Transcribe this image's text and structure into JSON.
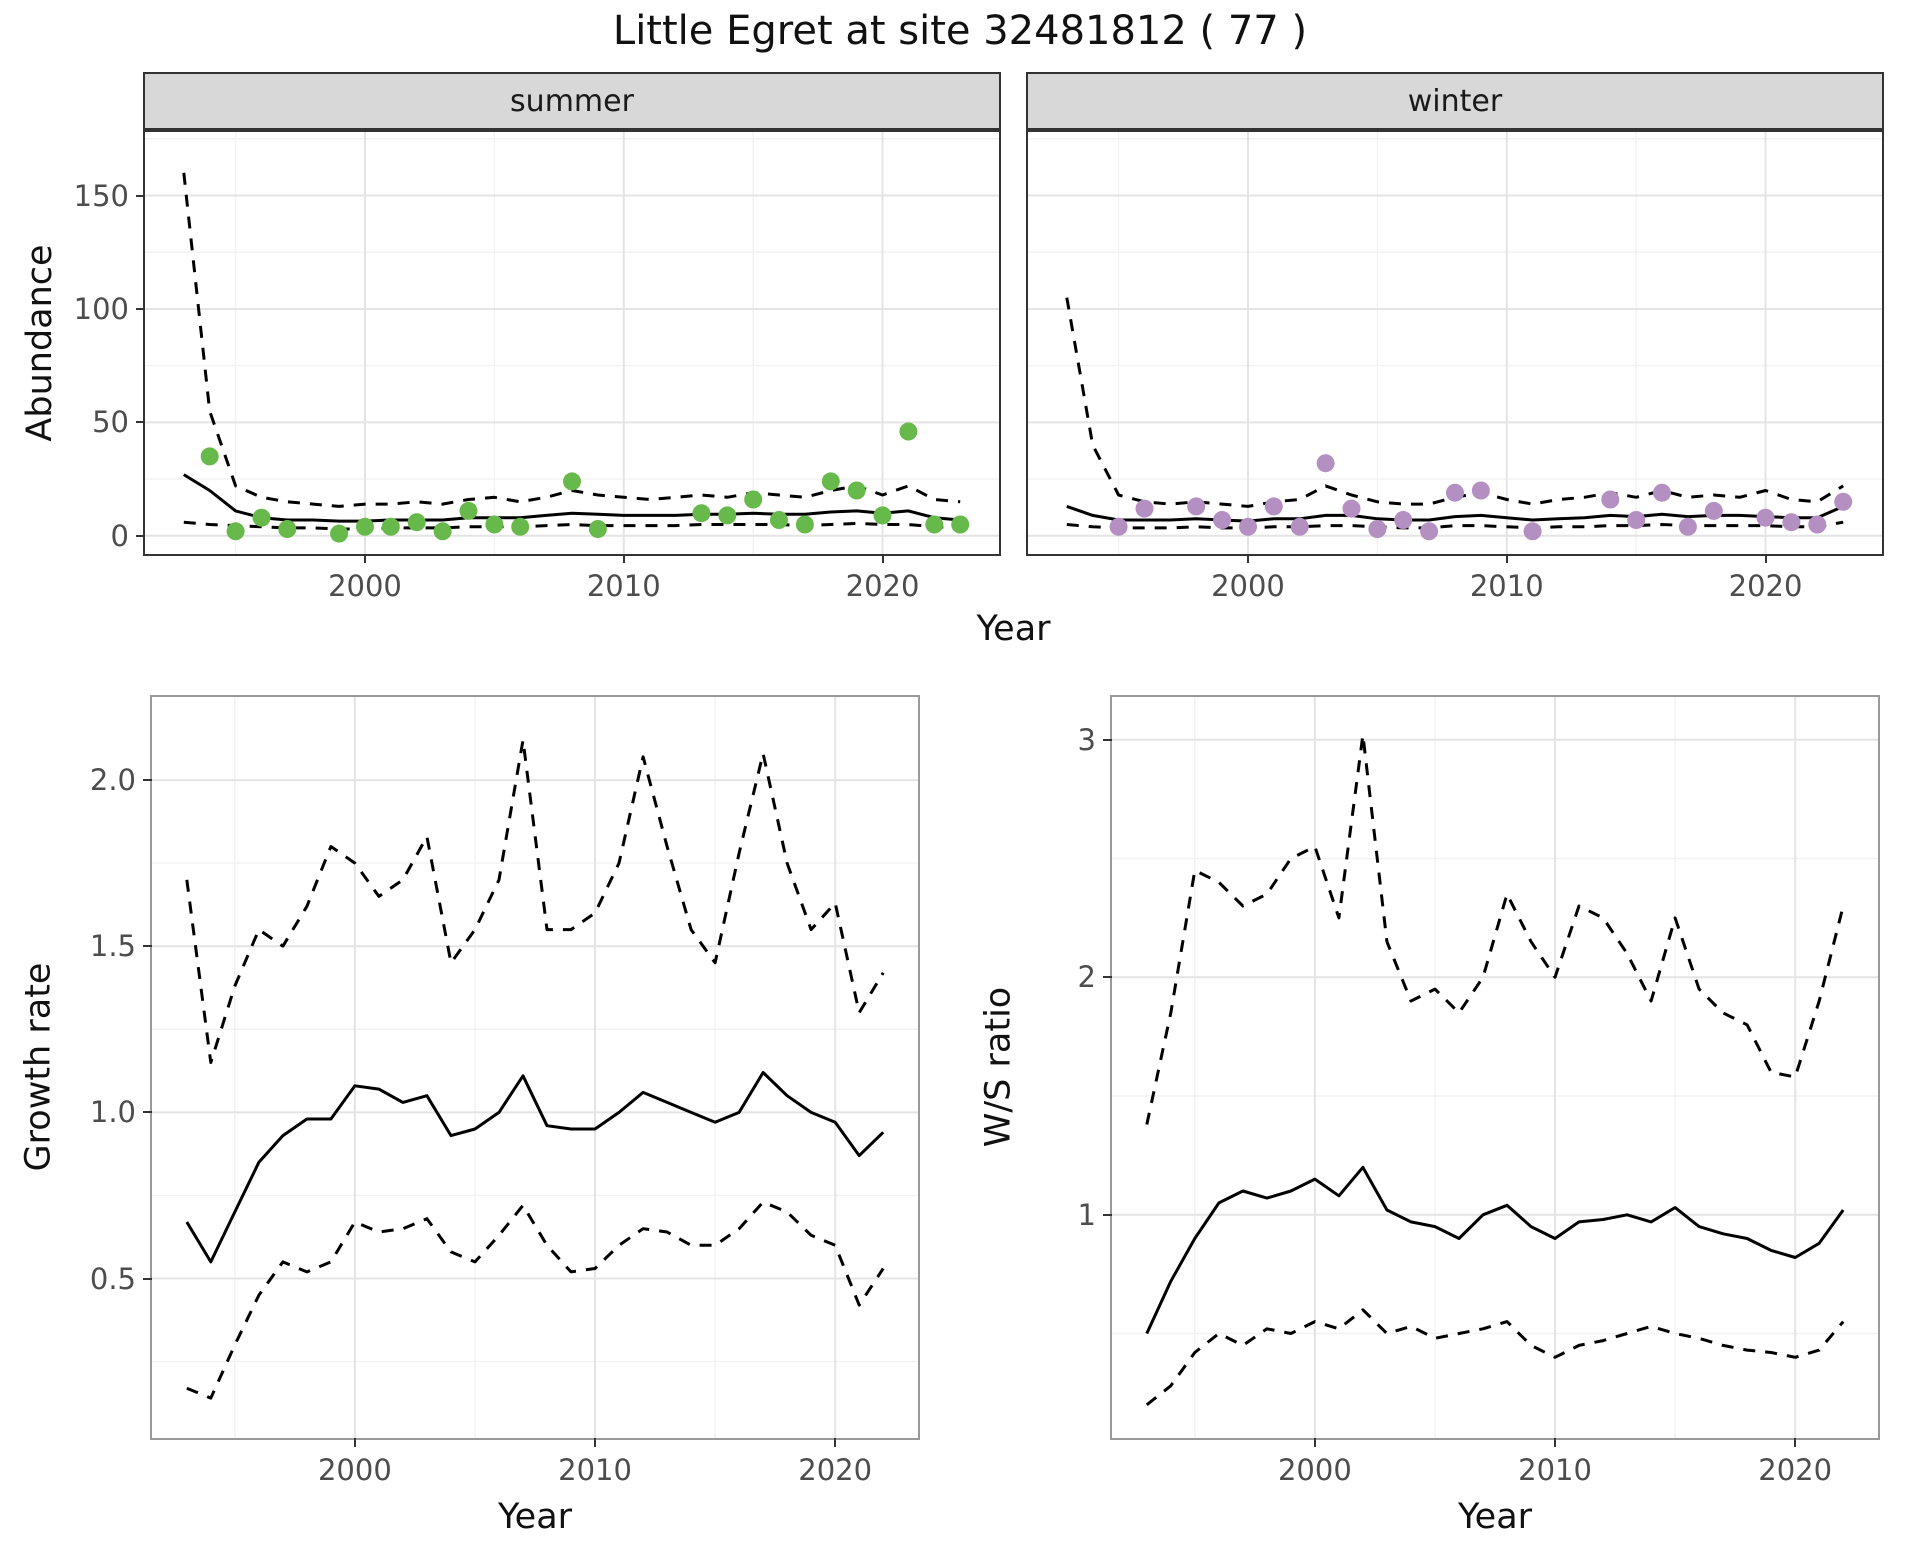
{
  "title": "Little Egret at site 32481812 ( 77 )",
  "style": {
    "line_color": "#000000",
    "grid_major": "#e4e4e4",
    "grid_minor": "#f2f2f2",
    "strip_bg": "#d8d8d8",
    "panel_border_dark": "#333333",
    "panel_border_light": "#999999",
    "tick_color": "#4d4d4d",
    "summer_green": "#68b94c",
    "winter_purple": "#b48fc2"
  },
  "chart_data": [
    {
      "id": "abundance-summer",
      "type": "line+scatter",
      "facet_label": "summer",
      "xlabel": "Year",
      "ylabel": "Abundance",
      "legend": "none",
      "grid": true,
      "xlim": [
        1991.5,
        2024.5
      ],
      "ylim": [
        -8,
        178
      ],
      "xticks": [
        2000,
        2010,
        2020
      ],
      "xtick_labels": [
        "2000",
        "2010",
        "2020"
      ],
      "xticks_minor": [
        1995,
        2005,
        2015
      ],
      "yticks": [
        0,
        50,
        100,
        150
      ],
      "ytick_labels": [
        "0",
        "50",
        "100",
        "150"
      ],
      "yticks_minor": [
        25,
        75,
        125,
        175
      ],
      "point_color": "#68b94c",
      "years": [
        1993,
        1994,
        1995,
        1996,
        1997,
        1998,
        1999,
        2000,
        2001,
        2002,
        2003,
        2004,
        2005,
        2006,
        2007,
        2008,
        2009,
        2010,
        2011,
        2012,
        2013,
        2014,
        2015,
        2016,
        2017,
        2018,
        2019,
        2020,
        2021,
        2022,
        2023
      ],
      "series": [
        {
          "name": "upper-ci",
          "dashed": true,
          "values": [
            160,
            55,
            22,
            17,
            15,
            14,
            13,
            14,
            14,
            15,
            14,
            16,
            17,
            15,
            17,
            20,
            18,
            17,
            16,
            17,
            18,
            17,
            19,
            18,
            17,
            20,
            22,
            18,
            22,
            16,
            15
          ]
        },
        {
          "name": "lower-ci",
          "dashed": true,
          "values": [
            6,
            5,
            4.5,
            4,
            3.5,
            3.5,
            3,
            3,
            3.5,
            3.5,
            3.5,
            4,
            4,
            4,
            4.5,
            5,
            4.5,
            4.5,
            4.5,
            4.5,
            5,
            5,
            5,
            5,
            4.5,
            5,
            5.5,
            5,
            5,
            4,
            3.5
          ]
        },
        {
          "name": "mean",
          "dashed": false,
          "values": [
            27,
            20,
            11,
            8,
            7,
            7,
            6.5,
            6.5,
            7,
            7,
            7,
            8,
            8,
            8,
            9,
            10,
            9.5,
            9,
            9,
            9,
            9.5,
            9.5,
            10,
            9.5,
            9.5,
            10.5,
            11,
            10,
            11,
            8,
            7
          ]
        }
      ],
      "points": [
        [
          1994,
          35
        ],
        [
          1995,
          2
        ],
        [
          1996,
          8
        ],
        [
          1997,
          3
        ],
        [
          1999,
          1
        ],
        [
          2000,
          4
        ],
        [
          2001,
          4
        ],
        [
          2002,
          6
        ],
        [
          2003,
          2
        ],
        [
          2004,
          11
        ],
        [
          2005,
          5
        ],
        [
          2006,
          4
        ],
        [
          2008,
          24
        ],
        [
          2009,
          3
        ],
        [
          2013,
          10
        ],
        [
          2014,
          9
        ],
        [
          2015,
          16
        ],
        [
          2016,
          7
        ],
        [
          2017,
          5
        ],
        [
          2018,
          24
        ],
        [
          2019,
          20
        ],
        [
          2020,
          9
        ],
        [
          2021,
          46
        ],
        [
          2022,
          5
        ],
        [
          2023,
          5
        ]
      ]
    },
    {
      "id": "abundance-winter",
      "type": "line+scatter",
      "facet_label": "winter",
      "xlabel": "Year",
      "ylabel": "Abundance",
      "legend": "none",
      "grid": true,
      "xlim": [
        1991.5,
        2024.5
      ],
      "ylim": [
        -8,
        178
      ],
      "xticks": [
        2000,
        2010,
        2020
      ],
      "xtick_labels": [
        "2000",
        "2010",
        "2020"
      ],
      "xticks_minor": [
        1995,
        2005,
        2015
      ],
      "yticks": [
        0,
        50,
        100,
        150
      ],
      "ytick_labels": [
        "0",
        "50",
        "100",
        "150"
      ],
      "yticks_minor": [
        25,
        75,
        125,
        175
      ],
      "point_color": "#b48fc2",
      "years": [
        1993,
        1994,
        1995,
        1996,
        1997,
        1998,
        1999,
        2000,
        2001,
        2002,
        2003,
        2004,
        2005,
        2006,
        2007,
        2008,
        2009,
        2010,
        2011,
        2012,
        2013,
        2014,
        2015,
        2016,
        2017,
        2018,
        2019,
        2020,
        2021,
        2022,
        2023
      ],
      "series": [
        {
          "name": "upper-ci",
          "dashed": true,
          "values": [
            105,
            40,
            18,
            15,
            14,
            15,
            14,
            13,
            15,
            16,
            22,
            18,
            15,
            14,
            14,
            17,
            19,
            16,
            14,
            16,
            17,
            19,
            17,
            20,
            17,
            18,
            17,
            20,
            16,
            15,
            22
          ]
        },
        {
          "name": "lower-ci",
          "dashed": true,
          "values": [
            5,
            4,
            3.5,
            3.5,
            3.5,
            4,
            3.5,
            3.5,
            4,
            4,
            4.5,
            4.5,
            4,
            3.5,
            3.5,
            4.5,
            4.5,
            4,
            3.5,
            4,
            4,
            4.5,
            4.5,
            5,
            4.5,
            4.5,
            4.5,
            4.5,
            4,
            4,
            6
          ]
        },
        {
          "name": "mean",
          "dashed": false,
          "values": [
            13,
            9,
            7,
            7,
            7,
            7.5,
            7,
            6.5,
            7.5,
            7.5,
            9,
            9,
            7.5,
            7,
            7,
            8.5,
            9,
            8,
            7,
            7.5,
            8,
            9,
            8.5,
            9.5,
            8.5,
            9,
            9,
            8.5,
            8,
            8,
            13
          ]
        }
      ],
      "points": [
        [
          1995,
          4
        ],
        [
          1996,
          12
        ],
        [
          1998,
          13
        ],
        [
          1999,
          7
        ],
        [
          2000,
          4
        ],
        [
          2001,
          13
        ],
        [
          2002,
          4
        ],
        [
          2003,
          32
        ],
        [
          2004,
          12
        ],
        [
          2005,
          3
        ],
        [
          2006,
          7
        ],
        [
          2007,
          2
        ],
        [
          2008,
          19
        ],
        [
          2009,
          20
        ],
        [
          2011,
          2
        ],
        [
          2014,
          16
        ],
        [
          2015,
          7
        ],
        [
          2016,
          19
        ],
        [
          2017,
          4
        ],
        [
          2018,
          11
        ],
        [
          2020,
          8
        ],
        [
          2021,
          6
        ],
        [
          2022,
          5
        ],
        [
          2023,
          15
        ]
      ]
    },
    {
      "id": "growth-rate",
      "type": "line",
      "facet_label": "",
      "xlabel": "Year",
      "ylabel": "Growth rate",
      "legend": "none",
      "grid": true,
      "xlim": [
        1991.55,
        2023.45
      ],
      "ylim": [
        0.02,
        2.25
      ],
      "xticks": [
        2000,
        2010,
        2020
      ],
      "xtick_labels": [
        "2000",
        "2010",
        "2020"
      ],
      "xticks_minor": [
        1995,
        2005,
        2015
      ],
      "yticks": [
        0.5,
        1.0,
        1.5,
        2.0
      ],
      "ytick_labels": [
        "0.5",
        "1.0",
        "1.5",
        "2.0"
      ],
      "yticks_minor": [
        0.25,
        0.75,
        1.25,
        1.75
      ],
      "years": [
        1993,
        1994,
        1995,
        1996,
        1997,
        1998,
        1999,
        2000,
        2001,
        2002,
        2003,
        2004,
        2005,
        2006,
        2007,
        2008,
        2009,
        2010,
        2011,
        2012,
        2013,
        2014,
        2015,
        2016,
        2017,
        2018,
        2019,
        2020,
        2021,
        2022
      ],
      "series": [
        {
          "name": "upper-ci",
          "dashed": true,
          "values": [
            1.7,
            1.15,
            1.38,
            1.55,
            1.5,
            1.62,
            1.8,
            1.75,
            1.65,
            1.7,
            1.83,
            1.45,
            1.55,
            1.7,
            2.12,
            1.55,
            1.55,
            1.6,
            1.75,
            2.07,
            1.8,
            1.55,
            1.45,
            1.78,
            2.08,
            1.75,
            1.55,
            1.63,
            1.3,
            1.42
          ]
        },
        {
          "name": "lower-ci",
          "dashed": true,
          "values": [
            0.17,
            0.14,
            0.3,
            0.45,
            0.55,
            0.52,
            0.55,
            0.67,
            0.64,
            0.65,
            0.68,
            0.58,
            0.55,
            0.63,
            0.72,
            0.6,
            0.52,
            0.53,
            0.6,
            0.65,
            0.64,
            0.6,
            0.6,
            0.65,
            0.73,
            0.7,
            0.63,
            0.6,
            0.42,
            0.53
          ]
        },
        {
          "name": "mean",
          "dashed": false,
          "values": [
            0.67,
            0.55,
            0.7,
            0.85,
            0.93,
            0.98,
            0.98,
            1.08,
            1.07,
            1.03,
            1.05,
            0.93,
            0.95,
            1.0,
            1.11,
            0.96,
            0.95,
            0.95,
            1.0,
            1.06,
            1.03,
            1.0,
            0.97,
            1.0,
            1.12,
            1.05,
            1.0,
            0.97,
            0.87,
            0.94
          ]
        }
      ],
      "points": []
    },
    {
      "id": "ws-ratio",
      "type": "line",
      "facet_label": "",
      "xlabel": "Year",
      "ylabel": "W/S ratio",
      "legend": "none",
      "grid": true,
      "xlim": [
        1991.55,
        2023.45
      ],
      "ylim": [
        0.06,
        3.18
      ],
      "xticks": [
        2000,
        2010,
        2020
      ],
      "xtick_labels": [
        "2000",
        "2010",
        "2020"
      ],
      "xticks_minor": [
        1995,
        2005,
        2015
      ],
      "yticks": [
        1,
        2,
        3
      ],
      "ytick_labels": [
        "1",
        "2",
        "3"
      ],
      "yticks_minor": [
        0.5,
        1.5,
        2.5
      ],
      "years": [
        1993,
        1994,
        1995,
        1996,
        1997,
        1998,
        1999,
        2000,
        2001,
        2002,
        2003,
        2004,
        2005,
        2006,
        2007,
        2008,
        2009,
        2010,
        2011,
        2012,
        2013,
        2014,
        2015,
        2016,
        2017,
        2018,
        2019,
        2020,
        2021,
        2022
      ],
      "series": [
        {
          "name": "upper-ci",
          "dashed": true,
          "values": [
            1.38,
            1.85,
            2.45,
            2.4,
            2.3,
            2.35,
            2.5,
            2.55,
            2.25,
            3.02,
            2.15,
            1.9,
            1.95,
            1.85,
            2.0,
            2.35,
            2.15,
            2.0,
            2.3,
            2.25,
            2.1,
            1.9,
            2.25,
            1.95,
            1.85,
            1.8,
            1.6,
            1.58,
            1.9,
            2.3
          ]
        },
        {
          "name": "lower-ci",
          "dashed": true,
          "values": [
            0.2,
            0.28,
            0.42,
            0.5,
            0.45,
            0.52,
            0.5,
            0.55,
            0.52,
            0.6,
            0.5,
            0.53,
            0.48,
            0.5,
            0.52,
            0.55,
            0.45,
            0.4,
            0.45,
            0.47,
            0.5,
            0.53,
            0.5,
            0.48,
            0.45,
            0.43,
            0.42,
            0.4,
            0.43,
            0.55
          ]
        },
        {
          "name": "mean",
          "dashed": false,
          "values": [
            0.5,
            0.72,
            0.9,
            1.05,
            1.1,
            1.07,
            1.1,
            1.15,
            1.08,
            1.2,
            1.02,
            0.97,
            0.95,
            0.9,
            1.0,
            1.04,
            0.95,
            0.9,
            0.97,
            0.98,
            1.0,
            0.97,
            1.03,
            0.95,
            0.92,
            0.9,
            0.85,
            0.82,
            0.88,
            1.02
          ]
        }
      ],
      "points": []
    }
  ]
}
